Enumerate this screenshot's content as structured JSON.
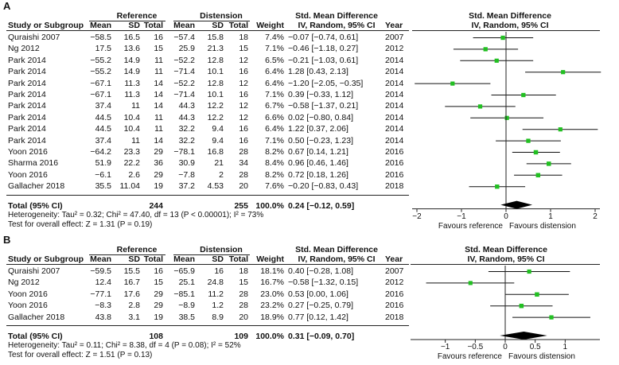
{
  "chart_data": [
    {
      "type": "forest",
      "panel": "A",
      "group_headers": {
        "reference": "Reference",
        "distension": "Distension"
      },
      "column_headers": {
        "study": "Study or Subgroup",
        "mean1": "Mean",
        "sd1": "SD",
        "total1": "Total",
        "mean2": "Mean",
        "sd2": "SD",
        "total2": "Total",
        "weight": "Weight",
        "smd_title": "Std. Mean Difference",
        "smd_sub": "IV, Random, 95% CI",
        "year": "Year",
        "plot_title": "Std. Mean Difference",
        "plot_sub": "IV, Random, 95% CI"
      },
      "studies": [
        {
          "study": "Quraishi 2007",
          "m1": "−58.5",
          "sd1": "16.5",
          "n1": "16",
          "m2": "−57.4",
          "sd2": "15.8",
          "n2": "18",
          "w": "7.4%",
          "ci": "−0.07 [−0.74, 0.61]",
          "year": "2007",
          "est": -0.07,
          "lo": -0.74,
          "hi": 0.61,
          "wt": 7.4
        },
        {
          "study": "Ng 2012",
          "m1": "17.5",
          "sd1": "13.6",
          "n1": "15",
          "m2": "25.9",
          "sd2": "21.3",
          "n2": "15",
          "w": "7.1%",
          "ci": "−0.46 [−1.18, 0.27]",
          "year": "2012",
          "est": -0.46,
          "lo": -1.18,
          "hi": 0.27,
          "wt": 7.1
        },
        {
          "study": "Park 2014",
          "m1": "−55.2",
          "sd1": "14.9",
          "n1": "11",
          "m2": "−52.2",
          "sd2": "12.8",
          "n2": "12",
          "w": "6.5%",
          "ci": "−0.21 [−1.03, 0.61]",
          "year": "2014",
          "est": -0.21,
          "lo": -1.03,
          "hi": 0.61,
          "wt": 6.5
        },
        {
          "study": "Park 2014",
          "m1": "−55.2",
          "sd1": "14.9",
          "n1": "11",
          "m2": "−71.4",
          "sd2": "10.1",
          "n2": "16",
          "w": "6.4%",
          "ci": "1.28 [0.43, 2.13]",
          "year": "2014",
          "est": 1.28,
          "lo": 0.43,
          "hi": 2.13,
          "wt": 6.4
        },
        {
          "study": "Park 2014",
          "m1": "−67.1",
          "sd1": "11.3",
          "n1": "14",
          "m2": "−52.2",
          "sd2": "12.8",
          "n2": "12",
          "w": "6.4%",
          "ci": "−1.20 [−2.05, −0.35]",
          "year": "2014",
          "est": -1.2,
          "lo": -2.05,
          "hi": -0.35,
          "wt": 6.4
        },
        {
          "study": "Park 2014",
          "m1": "−67.1",
          "sd1": "11.3",
          "n1": "14",
          "m2": "−71.4",
          "sd2": "10.1",
          "n2": "16",
          "w": "7.1%",
          "ci": "0.39 [−0.33, 1.12]",
          "year": "2014",
          "est": 0.39,
          "lo": -0.33,
          "hi": 1.12,
          "wt": 7.1
        },
        {
          "study": "Park 2014",
          "m1": "37.4",
          "sd1": "11",
          "n1": "14",
          "m2": "44.3",
          "sd2": "12.2",
          "n2": "12",
          "w": "6.7%",
          "ci": "−0.58 [−1.37, 0.21]",
          "year": "2014",
          "est": -0.58,
          "lo": -1.37,
          "hi": 0.21,
          "wt": 6.7
        },
        {
          "study": "Park 2014",
          "m1": "44.5",
          "sd1": "10.4",
          "n1": "11",
          "m2": "44.3",
          "sd2": "12.2",
          "n2": "12",
          "w": "6.6%",
          "ci": "0.02 [−0.80, 0.84]",
          "year": "2014",
          "est": 0.02,
          "lo": -0.8,
          "hi": 0.84,
          "wt": 6.6
        },
        {
          "study": "Park 2014",
          "m1": "44.5",
          "sd1": "10.4",
          "n1": "11",
          "m2": "32.2",
          "sd2": "9.4",
          "n2": "16",
          "w": "6.4%",
          "ci": "1.22 [0.37, 2.06]",
          "year": "2014",
          "est": 1.22,
          "lo": 0.37,
          "hi": 2.06,
          "wt": 6.4
        },
        {
          "study": "Park 2014",
          "m1": "37.4",
          "sd1": "11",
          "n1": "14",
          "m2": "32.2",
          "sd2": "9.4",
          "n2": "16",
          "w": "7.1%",
          "ci": "0.50 [−0.23, 1.23]",
          "year": "2014",
          "est": 0.5,
          "lo": -0.23,
          "hi": 1.23,
          "wt": 7.1
        },
        {
          "study": "Yoon 2016",
          "m1": "−64.2",
          "sd1": "23.3",
          "n1": "29",
          "m2": "−78.1",
          "sd2": "16.8",
          "n2": "28",
          "w": "8.2%",
          "ci": "0.67 [0.14, 1.21]",
          "year": "2016",
          "est": 0.67,
          "lo": 0.14,
          "hi": 1.21,
          "wt": 8.2
        },
        {
          "study": "Sharma 2016",
          "m1": "51.9",
          "sd1": "22.2",
          "n1": "36",
          "m2": "30.9",
          "sd2": "21",
          "n2": "34",
          "w": "8.4%",
          "ci": "0.96 [0.46, 1.46]",
          "year": "2016",
          "est": 0.96,
          "lo": 0.46,
          "hi": 1.46,
          "wt": 8.4
        },
        {
          "study": "Yoon 2016",
          "m1": "−6.1",
          "sd1": "2.6",
          "n1": "29",
          "m2": "−7.8",
          "sd2": "2",
          "n2": "28",
          "w": "8.2%",
          "ci": "0.72 [0.18, 1.26]",
          "year": "2016",
          "est": 0.72,
          "lo": 0.18,
          "hi": 1.26,
          "wt": 8.2
        },
        {
          "study": "Gallacher 2018",
          "m1": "35.5",
          "sd1": "11.04",
          "n1": "19",
          "m2": "37.2",
          "sd2": "4.53",
          "n2": "20",
          "w": "7.6%",
          "ci": "−0.20 [−0.83, 0.43]",
          "year": "2018",
          "est": -0.2,
          "lo": -0.83,
          "hi": 0.43,
          "wt": 7.6
        }
      ],
      "total": {
        "label": "Total (95% CI)",
        "n1": "244",
        "n2": "255",
        "w": "100.0%",
        "ci": "0.24 [−0.12, 0.59]",
        "est": 0.24,
        "lo": -0.12,
        "hi": 0.59
      },
      "heterogeneity": "Heterogeneity: Tau² = 0.32; Chi² = 47.40, df = 13 (P < 0.00001); I² = 73%",
      "overall_effect": "Test for overall effect: Z = 1.31 (P = 0.19)",
      "xlim": [
        -2,
        2
      ],
      "ticks": [
        -2,
        -1,
        0,
        1,
        2
      ],
      "tick_labels": [
        "−2",
        "−1",
        "0",
        "1",
        "2"
      ],
      "favours_left": "Favours reference",
      "favours_right": "Favours distension"
    },
    {
      "type": "forest",
      "panel": "B",
      "group_headers": {
        "reference": "Reference",
        "distension": "Distension"
      },
      "column_headers": {
        "study": "Study or Subgroup",
        "mean1": "Mean",
        "sd1": "SD",
        "total1": "Total",
        "mean2": "Mean",
        "sd2": "SD",
        "total2": "Total",
        "weight": "Weight",
        "smd_title": "Std. Mean Difference",
        "smd_sub": "IV, Random, 95% CI",
        "year": "Year",
        "plot_title": "Std. Mean Difference",
        "plot_sub": "IV, Random, 95% CI"
      },
      "studies": [
        {
          "study": "Quraishi 2007",
          "m1": "−59.5",
          "sd1": "15.5",
          "n1": "16",
          "m2": "−65.9",
          "sd2": "16",
          "n2": "18",
          "w": "18.1%",
          "ci": "0.40 [−0.28, 1.08]",
          "year": "2007",
          "est": 0.4,
          "lo": -0.28,
          "hi": 1.08,
          "wt": 18.1
        },
        {
          "study": "Ng 2012",
          "m1": "12.4",
          "sd1": "16.7",
          "n1": "15",
          "m2": "25.1",
          "sd2": "24.8",
          "n2": "15",
          "w": "16.7%",
          "ci": "−0.58 [−1.32, 0.15]",
          "year": "2012",
          "est": -0.58,
          "lo": -1.32,
          "hi": 0.15,
          "wt": 16.7
        },
        {
          "study": "Yoon 2016",
          "m1": "−77.1",
          "sd1": "17.6",
          "n1": "29",
          "m2": "−85.1",
          "sd2": "11.2",
          "n2": "28",
          "w": "23.0%",
          "ci": "0.53 [0.00, 1.06]",
          "year": "2016",
          "est": 0.53,
          "lo": 0.0,
          "hi": 1.06,
          "wt": 23.0
        },
        {
          "study": "Yoon 2016",
          "m1": "−8.3",
          "sd1": "2.8",
          "n1": "29",
          "m2": "−8.9",
          "sd2": "1.2",
          "n2": "28",
          "w": "23.2%",
          "ci": "0.27 [−0.25, 0.79]",
          "year": "2016",
          "est": 0.27,
          "lo": -0.25,
          "hi": 0.79,
          "wt": 23.2
        },
        {
          "study": "Gallacher 2018",
          "m1": "43.8",
          "sd1": "3.1",
          "n1": "19",
          "m2": "38.5",
          "sd2": "8.9",
          "n2": "20",
          "w": "18.9%",
          "ci": "0.77 [0.12, 1.42]",
          "year": "2018",
          "est": 0.77,
          "lo": 0.12,
          "hi": 1.42,
          "wt": 18.9
        }
      ],
      "total": {
        "label": "Total (95% CI)",
        "n1": "108",
        "n2": "109",
        "w": "100.0%",
        "ci": "0.31 [−0.09, 0.70]",
        "est": 0.31,
        "lo": -0.09,
        "hi": 0.7
      },
      "heterogeneity": "Heterogeneity: Tau² = 0.11; Chi² = 8.38, df = 4 (P = 0.08); I² = 52%",
      "overall_effect": "Test for overall effect: Z = 1.51 (P = 0.13)",
      "xlim": [
        -1.5,
        1.5
      ],
      "ticks": [
        -1,
        -0.5,
        0,
        0.5,
        1
      ],
      "tick_labels": [
        "−1",
        "−0.5",
        "0",
        "0.5",
        "1"
      ],
      "favours_left": "Favours reference",
      "favours_right": "Favours distension"
    }
  ],
  "colors": {
    "marker": "#22c022",
    "ink": "#111111",
    "axis": "#222222"
  }
}
